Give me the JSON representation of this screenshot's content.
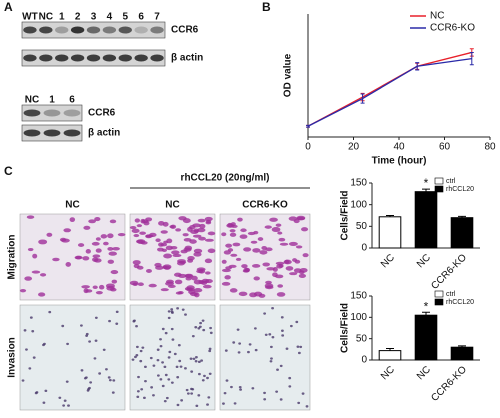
{
  "panels": {
    "a": "A",
    "b": "B",
    "c": "C"
  },
  "blot1": {
    "lanes": [
      "WT",
      "NC",
      "1",
      "2",
      "3",
      "4",
      "5",
      "6",
      "7"
    ],
    "bands": [
      "CCR6",
      "β actin"
    ]
  },
  "blot2": {
    "lanes": [
      "NC",
      "1",
      "6"
    ],
    "bands": [
      "CCR6",
      "β actin"
    ]
  },
  "micro": {
    "treatment": "rhCCL20 (20ng/ml)",
    "columns": [
      "NC",
      "NC",
      "CCR6-KO"
    ],
    "rows": [
      "Migration",
      "Invasion"
    ]
  },
  "chart_data": [
    {
      "type": "line",
      "x_label": "Time (hour)",
      "y_label": "OD value",
      "x": [
        0,
        24,
        48,
        72
      ],
      "xlim": [
        0,
        80
      ],
      "xticks": [
        0,
        20,
        40,
        60,
        80
      ],
      "ylim": [
        0,
        4
      ],
      "series": [
        {
          "name": "NC",
          "color": "#e8202a",
          "values": [
            0.35,
            1.3,
            2.3,
            2.75
          ],
          "errors": [
            0.03,
            0.12,
            0.1,
            0.12
          ]
        },
        {
          "name": "CCR6-KO",
          "color": "#2a2aa8",
          "values": [
            0.35,
            1.25,
            2.3,
            2.55
          ],
          "errors": [
            0.03,
            0.15,
            0.12,
            0.2
          ]
        }
      ]
    },
    {
      "type": "bar",
      "y_label": "Cells/Field",
      "annotation": "*",
      "categories": [
        "NC",
        "NC",
        "CCR6-KO"
      ],
      "ylim": [
        0,
        150
      ],
      "yticks": [
        0,
        50,
        100,
        150
      ],
      "series": [
        {
          "name": "ctrl",
          "color": "#ffffff",
          "values": [
            72,
            null,
            null
          ],
          "errors": [
            3,
            null,
            null
          ]
        },
        {
          "name": "rhCCL20",
          "color": "#000000",
          "values": [
            null,
            130,
            70
          ],
          "errors": [
            null,
            6,
            3
          ]
        }
      ]
    },
    {
      "type": "bar",
      "y_label": "Cells/Field",
      "annotation": "*",
      "categories": [
        "NC",
        "NC",
        "CCR6-KO"
      ],
      "ylim": [
        0,
        150
      ],
      "yticks": [
        0,
        50,
        100,
        150
      ],
      "series": [
        {
          "name": "ctrl",
          "color": "#ffffff",
          "values": [
            22,
            null,
            null
          ],
          "errors": [
            5,
            null,
            null
          ]
        },
        {
          "name": "rhCCL20",
          "color": "#000000",
          "values": [
            null,
            105,
            30
          ],
          "errors": [
            null,
            7,
            3
          ]
        }
      ]
    }
  ]
}
